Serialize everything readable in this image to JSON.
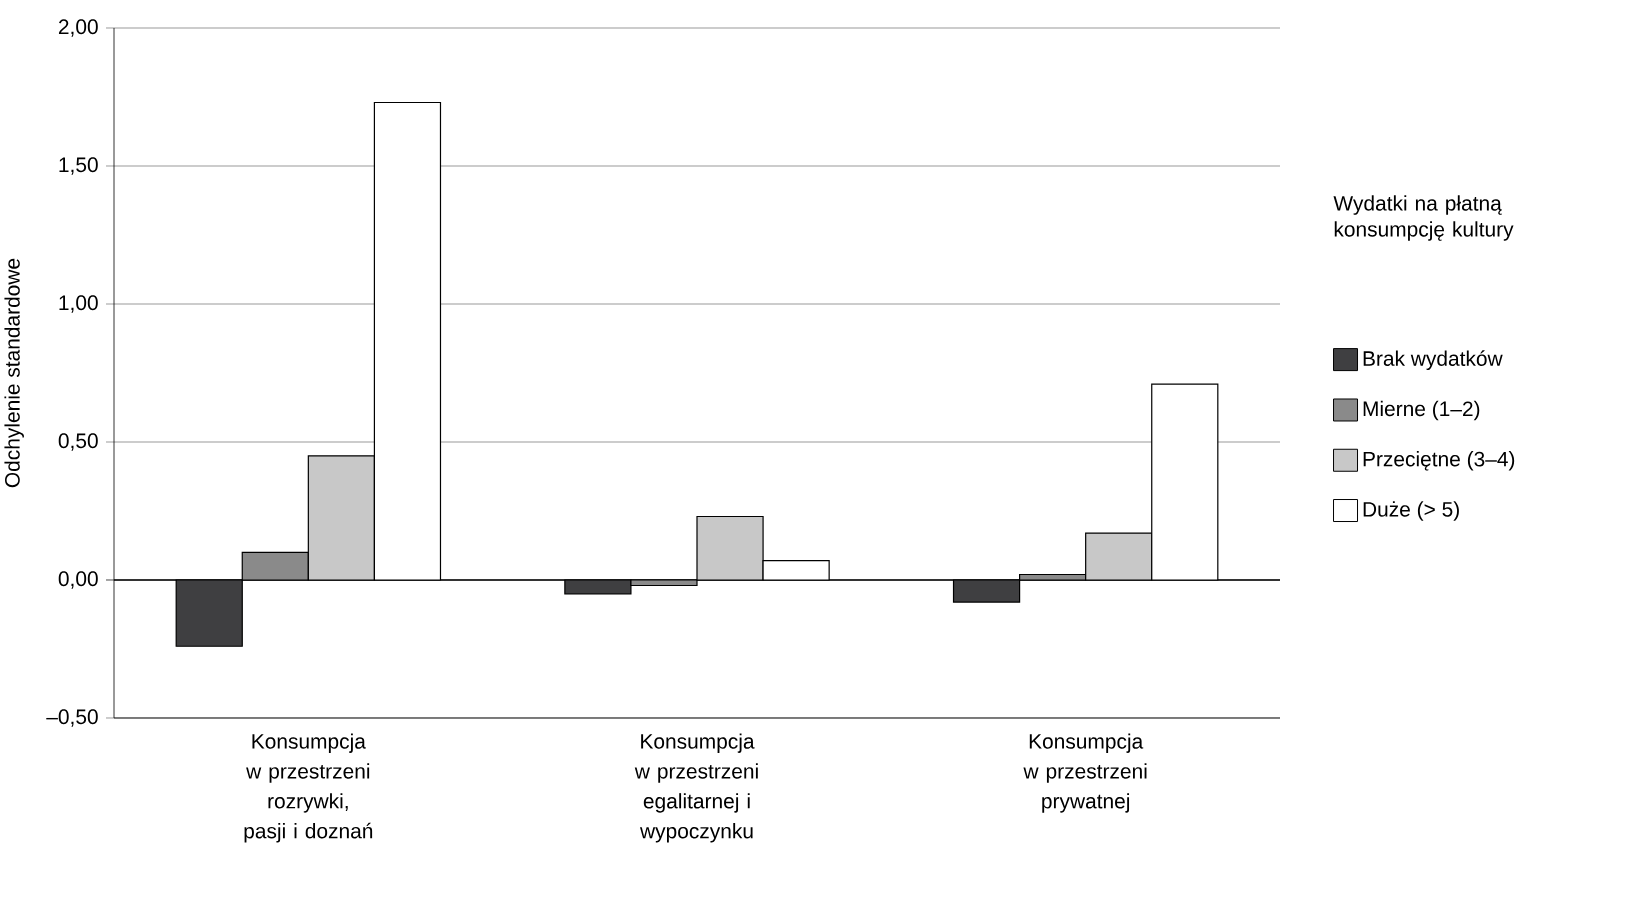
{
  "chart_data": {
    "type": "bar",
    "ylabel": "Odchylenie standardowe",
    "legend_title": "Wydatki na płatną konsumpcję kultury",
    "categories": [
      "Konsumpcja w przestrzeni rozrywki, pasji i doznań",
      "Konsumpcja w przestrzeni egalitarnej i wypoczynku",
      "Konsumpcja w przestrzeni prywatnej"
    ],
    "series": [
      {
        "name": "Brak wydatków",
        "color": "#3f3f41",
        "values": [
          -0.24,
          -0.05,
          -0.08
        ]
      },
      {
        "name": "Mierne (1–2)",
        "color": "#8a8a8a",
        "values": [
          0.1,
          -0.02,
          0.02
        ]
      },
      {
        "name": "Przeciętne (3–4)",
        "color": "#c8c8c8",
        "values": [
          0.45,
          0.23,
          0.17
        ]
      },
      {
        "name": "Duże (> 5)",
        "color": "#ffffff",
        "values": [
          1.73,
          0.07,
          0.71
        ]
      }
    ],
    "ylim": [
      -0.5,
      2.0
    ],
    "yticks": [
      {
        "value": -0.5,
        "label": "–0,50"
      },
      {
        "value": 0,
        "label": "0,00"
      },
      {
        "value": 0.5,
        "label": "0,50"
      },
      {
        "value": 1.0,
        "label": "1,00"
      },
      {
        "value": 1.5,
        "label": "1,50"
      },
      {
        "value": 2.0,
        "label": "2,00"
      }
    ],
    "grid": "y",
    "legend": "right"
  }
}
